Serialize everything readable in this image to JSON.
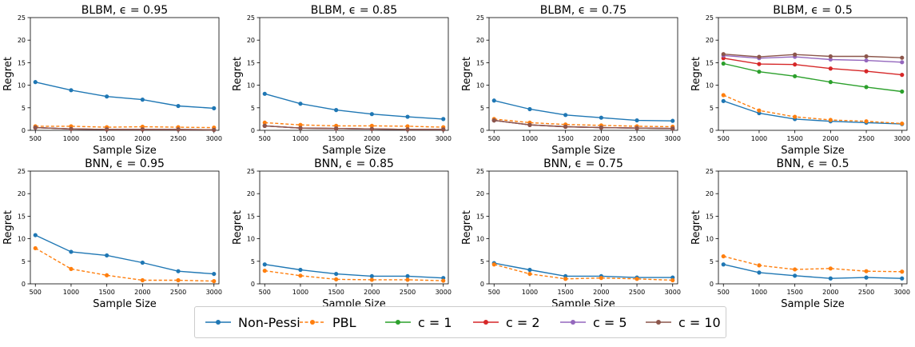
{
  "chart_data": {
    "type": "line",
    "layout": "2x4 grid of subplots",
    "x": [
      500,
      1000,
      1500,
      2000,
      2500,
      3000
    ],
    "xticks": [
      "500",
      "1000",
      "1500",
      "2000",
      "2500",
      "3000"
    ],
    "ylim": [
      0,
      25
    ],
    "yticks": [
      "0",
      "5",
      "10",
      "15",
      "20",
      "25"
    ],
    "xlabel": "Sample Size",
    "ylabel": "Regret",
    "legend_position": "bottom-center",
    "series_styles": {
      "Non-Pessi": {
        "color": "#1f77b4",
        "dash": "solid"
      },
      "PBL": {
        "color": "#ff7f0e",
        "dash": "dashed"
      },
      "c = 1": {
        "color": "#2ca02c",
        "dash": "solid"
      },
      "c = 2": {
        "color": "#d62728",
        "dash": "solid"
      },
      "c = 5": {
        "color": "#9467bd",
        "dash": "solid"
      },
      "c = 10": {
        "color": "#8c564b",
        "dash": "solid"
      }
    },
    "legend": [
      "Non-Pessi",
      "PBL",
      "c = 1",
      "c = 2",
      "c = 5",
      "c = 10"
    ],
    "subplots": [
      {
        "title": "BLBM, ϵ = 0.95",
        "series": [
          {
            "name": "Non-Pessi",
            "values": [
              10.7,
              8.9,
              7.5,
              6.8,
              5.4,
              4.9
            ]
          },
          {
            "name": "PBL",
            "values": [
              0.9,
              0.9,
              0.7,
              0.8,
              0.7,
              0.6
            ]
          },
          {
            "name": "c = 1",
            "values": [
              0.6,
              0.3,
              0.2,
              0.2,
              0.2,
              0.1
            ]
          },
          {
            "name": "c = 2",
            "values": [
              0.6,
              0.3,
              0.2,
              0.2,
              0.2,
              0.1
            ]
          },
          {
            "name": "c = 5",
            "values": [
              0.6,
              0.3,
              0.2,
              0.2,
              0.2,
              0.1
            ]
          },
          {
            "name": "c = 10",
            "values": [
              0.6,
              0.3,
              0.2,
              0.2,
              0.2,
              0.1
            ]
          }
        ]
      },
      {
        "title": "BLBM, ϵ = 0.85",
        "series": [
          {
            "name": "Non-Pessi",
            "values": [
              8.1,
              5.9,
              4.5,
              3.6,
              3.0,
              2.5
            ]
          },
          {
            "name": "PBL",
            "values": [
              1.7,
              1.2,
              1.0,
              1.0,
              0.9,
              0.7
            ]
          },
          {
            "name": "c = 1",
            "values": [
              1.0,
              0.5,
              0.4,
              0.3,
              0.2,
              0.2
            ]
          },
          {
            "name": "c = 2",
            "values": [
              1.0,
              0.5,
              0.4,
              0.3,
              0.2,
              0.2
            ]
          },
          {
            "name": "c = 5",
            "values": [
              1.0,
              0.5,
              0.4,
              0.3,
              0.2,
              0.2
            ]
          },
          {
            "name": "c = 10",
            "values": [
              1.0,
              0.5,
              0.4,
              0.3,
              0.2,
              0.2
            ]
          }
        ]
      },
      {
        "title": "BLBM, ϵ = 0.75",
        "series": [
          {
            "name": "Non-Pessi",
            "values": [
              6.6,
              4.7,
              3.4,
              2.8,
              2.2,
              2.1
            ]
          },
          {
            "name": "PBL",
            "values": [
              2.5,
              1.7,
              1.3,
              1.1,
              0.9,
              0.8
            ]
          },
          {
            "name": "c = 1",
            "values": [
              2.2,
              1.2,
              0.8,
              0.6,
              0.5,
              0.4
            ]
          },
          {
            "name": "c = 2",
            "values": [
              2.2,
              1.2,
              0.8,
              0.6,
              0.5,
              0.4
            ]
          },
          {
            "name": "c = 5",
            "values": [
              2.2,
              1.2,
              0.8,
              0.6,
              0.5,
              0.4
            ]
          },
          {
            "name": "c = 10",
            "values": [
              2.2,
              1.2,
              0.8,
              0.6,
              0.5,
              0.4
            ]
          }
        ]
      },
      {
        "title": "BLBM, ϵ = 0.5",
        "series": [
          {
            "name": "Non-Pessi",
            "values": [
              6.5,
              3.8,
              2.5,
              2.0,
              1.7,
              1.4
            ]
          },
          {
            "name": "PBL",
            "values": [
              7.8,
              4.4,
              3.0,
              2.3,
              2.0,
              1.5
            ]
          },
          {
            "name": "c = 1",
            "values": [
              14.8,
              13.0,
              12.0,
              10.7,
              9.6,
              8.6
            ]
          },
          {
            "name": "c = 2",
            "values": [
              16.0,
              14.7,
              14.6,
              13.7,
              13.1,
              12.3
            ]
          },
          {
            "name": "c = 5",
            "values": [
              16.6,
              16.0,
              16.3,
              15.7,
              15.5,
              15.1
            ]
          },
          {
            "name": "c = 10",
            "values": [
              16.9,
              16.3,
              16.8,
              16.4,
              16.4,
              16.1
            ]
          }
        ]
      },
      {
        "title": "BNN, ϵ = 0.95",
        "series": [
          {
            "name": "Non-Pessi",
            "values": [
              10.8,
              7.1,
              6.3,
              4.7,
              2.8,
              2.2
            ]
          },
          {
            "name": "PBL",
            "values": [
              7.9,
              3.3,
              1.9,
              0.8,
              0.8,
              0.6
            ]
          }
        ]
      },
      {
        "title": "BNN, ϵ = 0.85",
        "series": [
          {
            "name": "Non-Pessi",
            "values": [
              4.3,
              3.1,
              2.2,
              1.7,
              1.7,
              1.3
            ]
          },
          {
            "name": "PBL",
            "values": [
              2.9,
              1.8,
              1.0,
              0.9,
              0.9,
              0.7
            ]
          }
        ]
      },
      {
        "title": "BNN, ϵ = 0.75",
        "series": [
          {
            "name": "Non-Pessi",
            "values": [
              4.6,
              3.1,
              1.7,
              1.7,
              1.4,
              1.4
            ]
          },
          {
            "name": "PBL",
            "values": [
              4.3,
              2.2,
              1.1,
              1.3,
              1.1,
              0.8
            ]
          }
        ]
      },
      {
        "title": "BNN, ϵ = 0.5",
        "series": [
          {
            "name": "Non-Pessi",
            "values": [
              4.3,
              2.5,
              1.8,
              1.2,
              1.4,
              1.2
            ]
          },
          {
            "name": "PBL",
            "values": [
              6.1,
              4.1,
              3.2,
              3.4,
              2.8,
              2.7
            ]
          }
        ]
      }
    ]
  }
}
